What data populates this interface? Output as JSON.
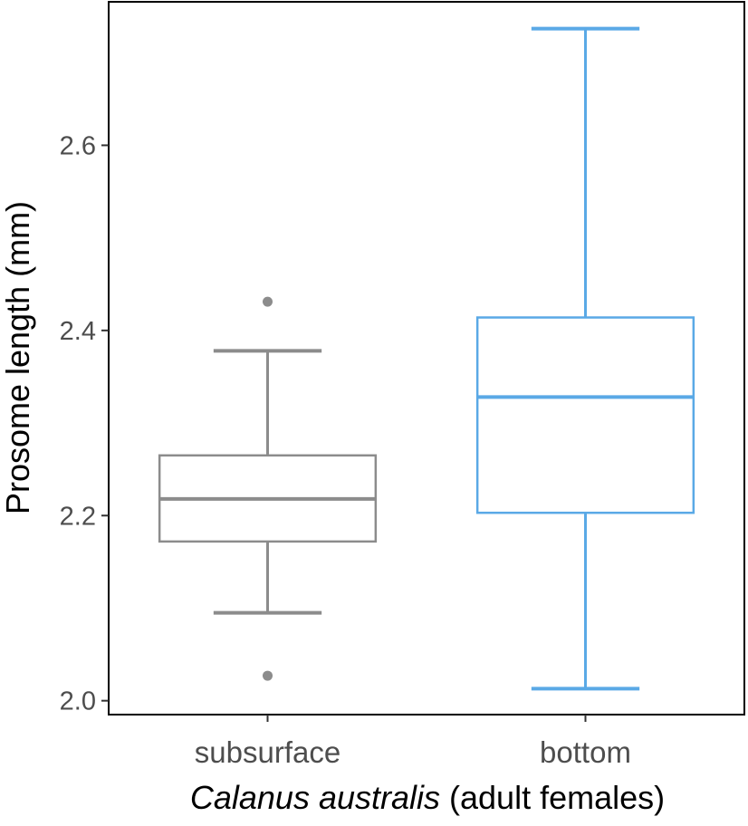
{
  "chart_data": {
    "type": "box",
    "ylabel": "Prosome length (mm)",
    "xlabel": {
      "italic": "Calanus australis",
      "rest": " (adult females)"
    },
    "ylim": [
      1.985,
      2.755
    ],
    "yticks": [
      "2.0",
      "2.2",
      "2.4",
      "2.6"
    ],
    "grid": false,
    "series": [
      {
        "category": "subsurface",
        "color": "#8c8c8c",
        "whisker_low": 2.095,
        "q1": 2.172,
        "median": 2.218,
        "q3": 2.265,
        "whisker_high": 2.378,
        "outliers": [
          2.431,
          2.027
        ]
      },
      {
        "category": "bottom",
        "color": "#5aa9e6",
        "whisker_low": 2.013,
        "q1": 2.203,
        "median": 2.328,
        "q3": 2.414,
        "whisker_high": 2.726,
        "outliers": []
      }
    ]
  }
}
